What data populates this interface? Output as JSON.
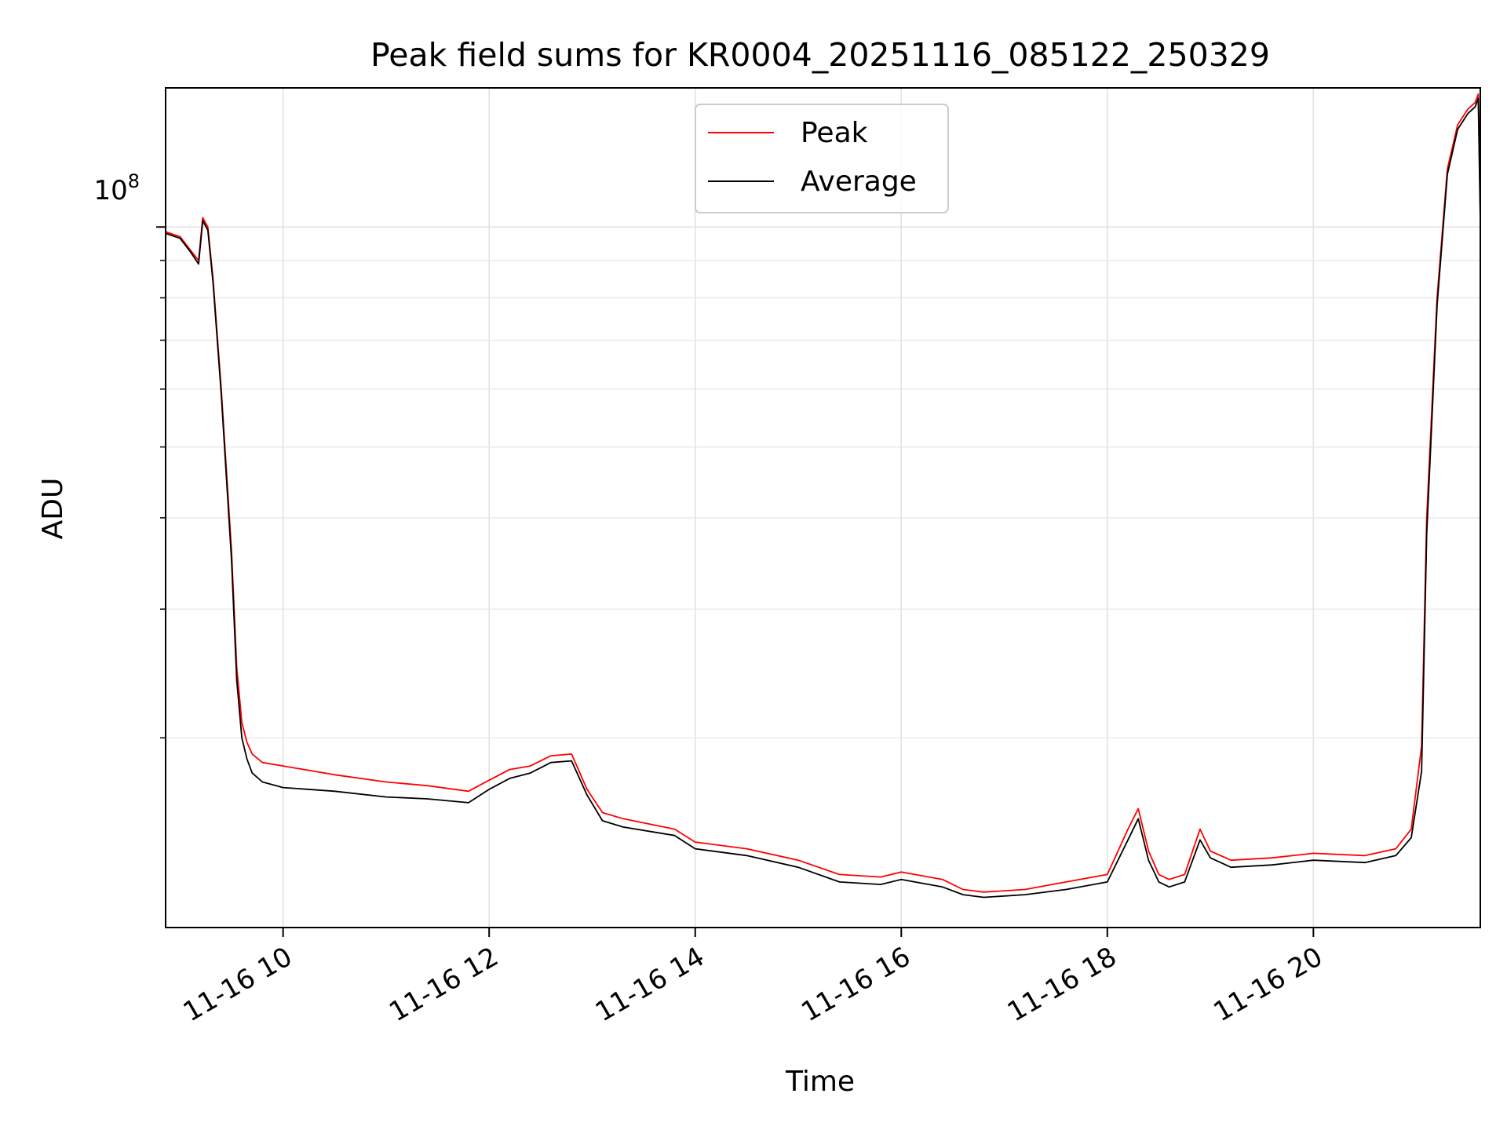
{
  "chart_data": {
    "type": "line",
    "title": "Peak field sums for KR0004_20251116_085122_250329",
    "xlabel": "Time",
    "ylabel": "ADU",
    "yscale": "log",
    "grid": true,
    "legend_position": "top-center",
    "x_unit": "hours of 2025-11-16",
    "xlim": [
      8.86,
      21.62
    ],
    "ylim": [
      11000000,
      155000000
    ],
    "x_tick_values": [
      10,
      12,
      14,
      16,
      18,
      20
    ],
    "x_tick_labels": [
      "11-16 10",
      "11-16 12",
      "11-16 14",
      "11-16 16",
      "11-16 18",
      "11-16 20"
    ],
    "y_major_tick": {
      "value": 100000000,
      "mantissa": "10",
      "exponent": "8"
    },
    "y_minor_ticks": [
      20000000,
      30000000,
      40000000,
      50000000,
      60000000,
      70000000,
      80000000,
      90000000
    ],
    "series": [
      {
        "name": "Peak",
        "color": "#ff0000",
        "x": [
          8.86,
          9.0,
          9.1,
          9.18,
          9.22,
          9.27,
          9.32,
          9.4,
          9.5,
          9.55,
          9.6,
          9.65,
          9.7,
          9.8,
          10.0,
          10.5,
          11.0,
          11.4,
          11.8,
          12.0,
          12.2,
          12.4,
          12.6,
          12.8,
          12.95,
          13.1,
          13.3,
          13.8,
          14.0,
          14.5,
          15.0,
          15.4,
          15.8,
          16.0,
          16.4,
          16.6,
          16.8,
          17.2,
          17.6,
          18.0,
          18.2,
          18.3,
          18.4,
          18.5,
          18.6,
          18.75,
          18.9,
          19.0,
          19.2,
          19.6,
          20.0,
          20.5,
          20.8,
          20.95,
          21.05,
          21.1,
          21.2,
          21.3,
          21.4,
          21.5,
          21.57,
          21.6,
          21.62
        ],
        "values": [
          98500000,
          97000000,
          93000000,
          90000000,
          103000000,
          100000000,
          85000000,
          60000000,
          36000000,
          25000000,
          21000000,
          19700000,
          19000000,
          18500000,
          18300000,
          17800000,
          17400000,
          17200000,
          16900000,
          17500000,
          18100000,
          18300000,
          18900000,
          19000000,
          17000000,
          15800000,
          15500000,
          15000000,
          14400000,
          14100000,
          13600000,
          13000000,
          12900000,
          13100000,
          12800000,
          12400000,
          12300000,
          12400000,
          12700000,
          13000000,
          15000000,
          16000000,
          14000000,
          13000000,
          12800000,
          13000000,
          15000000,
          14000000,
          13600000,
          13700000,
          13900000,
          13800000,
          14100000,
          15000000,
          19500000,
          40000000,
          80000000,
          120000000,
          138000000,
          145000000,
          148000000,
          152000000,
          104000000
        ]
      },
      {
        "name": "Average",
        "color": "#000000",
        "x": [
          8.86,
          9.0,
          9.1,
          9.18,
          9.22,
          9.27,
          9.32,
          9.4,
          9.5,
          9.55,
          9.6,
          9.65,
          9.7,
          9.8,
          10.0,
          10.5,
          11.0,
          11.4,
          11.8,
          12.0,
          12.2,
          12.4,
          12.6,
          12.8,
          12.95,
          13.1,
          13.3,
          13.8,
          14.0,
          14.5,
          15.0,
          15.4,
          15.8,
          16.0,
          16.4,
          16.6,
          16.8,
          17.2,
          17.6,
          18.0,
          18.2,
          18.3,
          18.4,
          18.5,
          18.6,
          18.75,
          18.9,
          19.0,
          19.2,
          19.6,
          20.0,
          20.5,
          20.8,
          20.95,
          21.05,
          21.1,
          21.2,
          21.3,
          21.4,
          21.5,
          21.57,
          21.6,
          21.62
        ],
        "values": [
          98000000,
          96500000,
          92500000,
          89000000,
          102000000,
          99000000,
          84000000,
          59000000,
          35000000,
          24000000,
          20000000,
          18700000,
          17900000,
          17400000,
          17100000,
          16900000,
          16600000,
          16500000,
          16300000,
          17000000,
          17600000,
          17900000,
          18500000,
          18600000,
          16700000,
          15400000,
          15100000,
          14700000,
          14100000,
          13800000,
          13300000,
          12700000,
          12600000,
          12800000,
          12500000,
          12200000,
          12100000,
          12200000,
          12400000,
          12700000,
          14500000,
          15500000,
          13600000,
          12700000,
          12500000,
          12700000,
          14500000,
          13700000,
          13300000,
          13400000,
          13600000,
          13500000,
          13800000,
          14600000,
          18000000,
          38000000,
          78000000,
          118000000,
          136000000,
          143000000,
          146000000,
          150000000,
          102000000
        ]
      }
    ]
  }
}
